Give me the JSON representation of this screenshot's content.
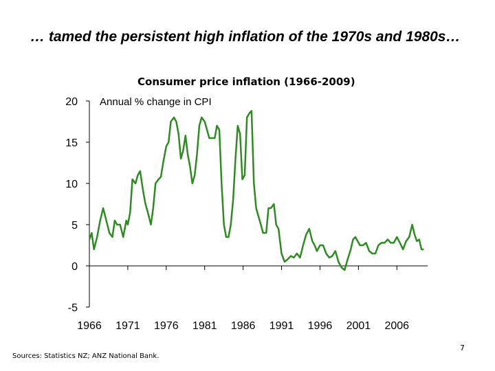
{
  "slide": {
    "title": "… tamed the persistent high inflation of the 1970s and 1980s…",
    "sources": "Sources:  Statistics NZ; ANZ National Bank.",
    "page_number": "7"
  },
  "colors": {
    "line": "#2e8b22",
    "axis": "#000000",
    "text": "#000000"
  },
  "chart_data": {
    "type": "line",
    "title": "Consumer price inflation (1966-2009)",
    "ylabel": "Annual % change in CPI",
    "xlabel": "",
    "x_ticks": [
      "1966",
      "1971",
      "1976",
      "1981",
      "1986",
      "1991",
      "1996",
      "2001",
      "2006"
    ],
    "y_ticks": [
      "20",
      "15",
      "10",
      "5",
      "0",
      "-5"
    ],
    "xlim": [
      1966,
      2010
    ],
    "ylim": [
      -5,
      20
    ],
    "grid": false,
    "series": [
      {
        "x": [
          1966.0,
          1966.3,
          1966.6,
          1967.0,
          1967.4,
          1967.8,
          1968.2,
          1968.6,
          1969.0,
          1969.3,
          1969.6,
          1970.0,
          1970.4,
          1970.8,
          1971.0,
          1971.3,
          1971.6,
          1972.0,
          1972.3,
          1972.6,
          1973.0,
          1973.3,
          1973.6,
          1974.0,
          1974.3,
          1974.6,
          1975.0,
          1975.3,
          1975.6,
          1976.0,
          1976.3,
          1976.6,
          1977.0,
          1977.3,
          1977.6,
          1977.9,
          1978.2,
          1978.5,
          1978.8,
          1979.1,
          1979.4,
          1979.7,
          1980.0,
          1980.3,
          1980.6,
          1981.0,
          1981.3,
          1981.6,
          1982.0,
          1982.3,
          1982.6,
          1982.9,
          1983.2,
          1983.5,
          1983.8,
          1984.1,
          1984.4,
          1984.7,
          1985.0,
          1985.3,
          1985.6,
          1985.9,
          1986.2,
          1986.5,
          1986.8,
          1987.1,
          1987.4,
          1987.7,
          1988.0,
          1988.3,
          1988.6,
          1989.0,
          1989.3,
          1989.6,
          1990.0,
          1990.3,
          1990.6,
          1991.0,
          1991.4,
          1991.8,
          1992.2,
          1992.6,
          1993.0,
          1993.4,
          1993.8,
          1994.2,
          1994.6,
          1995.0,
          1995.3,
          1995.6,
          1996.0,
          1996.4,
          1996.8,
          1997.2,
          1997.6,
          1998.0,
          1998.4,
          1998.8,
          1999.2,
          1999.6,
          2000.0,
          2000.3,
          2000.6,
          2000.9,
          2001.2,
          2001.6,
          2002.0,
          2002.4,
          2002.8,
          2003.2,
          2003.6,
          2004.0,
          2004.4,
          2004.8,
          2005.2,
          2005.6,
          2006.0,
          2006.4,
          2006.8,
          2007.2,
          2007.6,
          2008.0,
          2008.3,
          2008.6,
          2008.9,
          2009.2,
          2009.5
        ],
        "values": [
          3.2,
          4.0,
          2.0,
          3.5,
          5.5,
          7.0,
          5.5,
          4.0,
          3.5,
          5.5,
          5.0,
          5.0,
          3.5,
          5.5,
          5.0,
          6.5,
          10.5,
          10.0,
          11.0,
          11.5,
          9.0,
          7.5,
          6.5,
          5.0,
          7.0,
          10.0,
          10.5,
          10.8,
          12.5,
          14.5,
          15.0,
          17.5,
          18.0,
          17.5,
          16.0,
          13.0,
          14.0,
          15.8,
          13.5,
          12.0,
          10.0,
          11.0,
          13.5,
          17.0,
          18.0,
          17.5,
          16.5,
          15.5,
          15.5,
          15.5,
          17.0,
          16.5,
          10.0,
          5.0,
          3.5,
          3.5,
          5.0,
          8.0,
          13.0,
          17.0,
          16.0,
          10.5,
          11.0,
          18.0,
          18.5,
          18.8,
          10.0,
          7.0,
          6.0,
          5.0,
          4.0,
          4.0,
          7.0,
          7.0,
          7.5,
          5.0,
          4.5,
          1.5,
          0.5,
          0.8,
          1.2,
          1.0,
          1.5,
          1.0,
          2.5,
          3.8,
          4.5,
          3.0,
          2.5,
          1.8,
          2.5,
          2.5,
          1.5,
          1.0,
          1.2,
          1.8,
          0.5,
          -0.2,
          -0.5,
          0.8,
          2.0,
          3.2,
          3.5,
          3.0,
          2.5,
          2.5,
          2.8,
          1.8,
          1.5,
          1.5,
          2.5,
          2.8,
          2.8,
          3.2,
          2.8,
          2.8,
          3.5,
          2.8,
          2.0,
          3.0,
          3.5,
          5.0,
          3.8,
          3.0,
          3.2,
          2.0,
          2.0
        ]
      }
    ]
  }
}
